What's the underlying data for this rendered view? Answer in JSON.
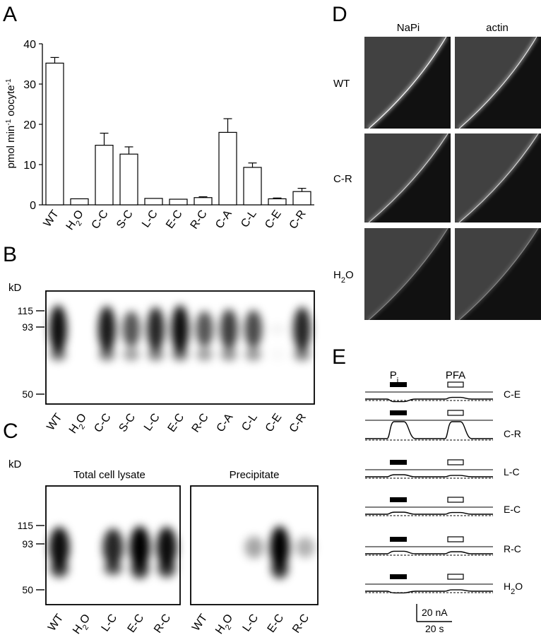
{
  "panel_labels": {
    "a": "A",
    "b": "B",
    "c": "C",
    "d": "D",
    "e": "E"
  },
  "chart_data": {
    "type": "bar",
    "categories": [
      "WT",
      "H2O",
      "C-C",
      "S-C",
      "L-C",
      "E-C",
      "R-C",
      "C-A",
      "C-L",
      "C-E",
      "C-R"
    ],
    "category_labels": [
      {
        "main": "WT",
        "sub": "",
        "tail": ""
      },
      {
        "main": "H",
        "sub": "2",
        "tail": "O"
      },
      {
        "main": "C-C",
        "sub": "",
        "tail": ""
      },
      {
        "main": "S-C",
        "sub": "",
        "tail": ""
      },
      {
        "main": "L-C",
        "sub": "",
        "tail": ""
      },
      {
        "main": "E-C",
        "sub": "",
        "tail": ""
      },
      {
        "main": "R-C",
        "sub": "",
        "tail": ""
      },
      {
        "main": "C-A",
        "sub": "",
        "tail": ""
      },
      {
        "main": "C-L",
        "sub": "",
        "tail": ""
      },
      {
        "main": "C-E",
        "sub": "",
        "tail": ""
      },
      {
        "main": "C-R",
        "sub": "",
        "tail": ""
      }
    ],
    "values": [
      35.2,
      1.5,
      14.8,
      12.6,
      1.6,
      1.4,
      1.8,
      18.0,
      9.3,
      1.5,
      3.3
    ],
    "errors": [
      1.4,
      0.1,
      3.0,
      1.8,
      0.1,
      0.1,
      0.2,
      3.4,
      1.1,
      0.2,
      0.8
    ],
    "ylabel": {
      "main": "pmol min",
      "sup1": "-1",
      "mid": " oocyte",
      "sup2": "-1"
    },
    "ylim": [
      0,
      40
    ],
    "yticks": [
      0,
      10,
      20,
      30,
      40
    ],
    "grid": false
  },
  "blot_b": {
    "unit": "kD",
    "markers": [
      {
        "label": "115",
        "kd": 115
      },
      {
        "label": "93",
        "kd": 93
      },
      {
        "label": "50",
        "kd": 50
      }
    ],
    "lanes": [
      {
        "main": "WT",
        "sub": "",
        "tail": "",
        "intensity": 1.0
      },
      {
        "main": "H",
        "sub": "2",
        "tail": "O",
        "intensity": 0.0
      },
      {
        "main": "C-C",
        "sub": "",
        "tail": "",
        "intensity": 0.95
      },
      {
        "main": "S-C",
        "sub": "",
        "tail": "",
        "intensity": 0.7
      },
      {
        "main": "L-C",
        "sub": "",
        "tail": "",
        "intensity": 0.9
      },
      {
        "main": "E-C",
        "sub": "",
        "tail": "",
        "intensity": 1.0
      },
      {
        "main": "R-C",
        "sub": "",
        "tail": "",
        "intensity": 0.7
      },
      {
        "main": "C-A",
        "sub": "",
        "tail": "",
        "intensity": 0.8
      },
      {
        "main": "C-L",
        "sub": "",
        "tail": "",
        "intensity": 0.75
      },
      {
        "main": "C-E",
        "sub": "",
        "tail": "",
        "intensity": 0.05
      },
      {
        "main": "C-R",
        "sub": "",
        "tail": "",
        "intensity": 0.9
      }
    ]
  },
  "blot_c": {
    "unit": "kD",
    "markers": [
      {
        "label": "115",
        "kd": 115
      },
      {
        "label": "93",
        "kd": 93
      },
      {
        "label": "50",
        "kd": 50
      }
    ],
    "total_title": "Total cell lysate",
    "precip_title": "Precipitate",
    "total_lanes": [
      {
        "main": "WT",
        "sub": "",
        "tail": "",
        "intensity": 0.95
      },
      {
        "main": "H",
        "sub": "2",
        "tail": "O",
        "intensity": 0.0
      },
      {
        "main": "L-C",
        "sub": "",
        "tail": "",
        "intensity": 0.85
      },
      {
        "main": "E-C",
        "sub": "",
        "tail": "",
        "intensity": 1.0
      },
      {
        "main": "R-C",
        "sub": "",
        "tail": "",
        "intensity": 0.95
      }
    ],
    "precip_lanes": [
      {
        "main": "WT",
        "sub": "",
        "tail": "",
        "intensity": 0.0
      },
      {
        "main": "H",
        "sub": "2",
        "tail": "O",
        "intensity": 0.0
      },
      {
        "main": "L-C",
        "sub": "",
        "tail": "",
        "intensity": 0.35
      },
      {
        "main": "E-C",
        "sub": "",
        "tail": "",
        "intensity": 1.0
      },
      {
        "main": "R-C",
        "sub": "",
        "tail": "",
        "intensity": 0.3
      }
    ]
  },
  "micro_d": {
    "col_labels": [
      "NaPi",
      "actin"
    ],
    "rows": [
      {
        "main": "WT",
        "sub": "",
        "tail": ""
      },
      {
        "main": "C-R",
        "sub": "",
        "tail": ""
      },
      {
        "main": "H",
        "sub": "2",
        "tail": "O"
      }
    ]
  },
  "traces_e": {
    "pi_label": {
      "main": "P",
      "sub": "i"
    },
    "pfa_label": "PFA",
    "rows": [
      {
        "main": "C-E",
        "sub": "",
        "tail": "",
        "pi": -0.15,
        "pfa": 0.1
      },
      {
        "main": "C-R",
        "sub": "",
        "tail": "",
        "pi": 1.0,
        "pfa": 1.0
      },
      {
        "main": "L-C",
        "sub": "",
        "tail": "",
        "pi": 0.12,
        "pfa": 0.08
      },
      {
        "main": "E-C",
        "sub": "",
        "tail": "",
        "pi": 0.12,
        "pfa": 0.1
      },
      {
        "main": "R-C",
        "sub": "",
        "tail": "",
        "pi": 0.15,
        "pfa": 0.12
      },
      {
        "main": "H",
        "sub": "2",
        "tail": "O",
        "pi": -0.1,
        "pfa": 0.08
      }
    ],
    "scale_current": "20 nA",
    "scale_time": "20 s"
  }
}
